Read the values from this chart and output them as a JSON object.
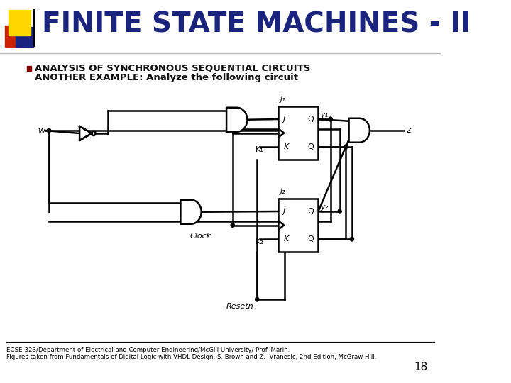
{
  "title": "FINITE STATE MACHINES - II",
  "title_color": "#1a237e",
  "title_fontsize": 28,
  "bg_color": "#ffffff",
  "bullet_text_line1": "ANALYSIS OF SYNCHRONOUS SEQUENTIAL CIRCUITS",
  "bullet_text_line2": "ANOTHER EXAMPLE: Analyze the following circuit",
  "footer_line1": "ECSE-323/Department of Electrical and Computer Engineering/McGill University/ Prof. Marin.",
  "footer_line2": "Figures taken from Fundamentals of Digital Logic with VHDL Design, S. Brown and Z.  Vranesic, 2nd Edition, McGraw Hill.",
  "page_num": "18",
  "deco_yellow": "#FFD700",
  "deco_red": "#CC2200",
  "deco_blue": "#1a237e",
  "circuit_lw": 1.8
}
